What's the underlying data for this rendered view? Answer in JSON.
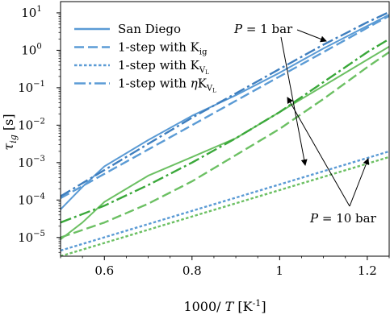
{
  "chart_data": {
    "type": "line",
    "xlabel": "1000/ T [K⁻¹]",
    "ylabel": "τ_ig [s]",
    "xlim": [
      0.5,
      1.25
    ],
    "ylim_log10": [
      -5.5,
      1.3
    ],
    "yscale": "log",
    "grid": false,
    "legend_position": "top-left",
    "x_ticks": [
      {
        "value": 0.6,
        "label": "0.6"
      },
      {
        "value": 0.8,
        "label": "0.8"
      },
      {
        "value": 1.0,
        "label": "1"
      },
      {
        "value": 1.2,
        "label": "1.2"
      }
    ],
    "y_ticks": [
      {
        "exp": 1,
        "label": "1"
      },
      {
        "exp": 0,
        "label": "0"
      },
      {
        "exp": -1,
        "label": "−1"
      },
      {
        "exp": -2,
        "label": "−2"
      },
      {
        "exp": -3,
        "label": "−3"
      },
      {
        "exp": -4,
        "label": "−4"
      },
      {
        "exp": -5,
        "label": "−5"
      }
    ],
    "legend": [
      {
        "label": "San Diego",
        "sub": "",
        "prefix": "",
        "style": "solid"
      },
      {
        "label": "1-step with K",
        "sub": "ig",
        "prefix": "",
        "style": "dashed"
      },
      {
        "label": "1-step with K",
        "sub": "V",
        "subsub": "L",
        "prefix": "",
        "style": "dotted"
      },
      {
        "label": "1-step with ",
        "prefix_symbol": "η",
        "label2": "K",
        "sub": "V",
        "subsub": "L",
        "style": "dashdot"
      }
    ],
    "annotations": [
      {
        "text_prefix": "P",
        "text_suffix": " = 1 bar",
        "target": "blue"
      },
      {
        "text_prefix": "P",
        "text_suffix": " = 10 bar",
        "target": "green"
      }
    ],
    "colors": {
      "blue": "#5b9bd5",
      "blue_dark": "#3f7fbf",
      "green": "#6cc063",
      "green_dark": "#3aa83a"
    },
    "series": [
      {
        "group": "P=1 bar",
        "style": "solid",
        "color": "blue",
        "x": [
          0.5,
          0.55,
          0.6,
          0.7,
          0.8,
          0.9,
          1.0,
          1.1,
          1.2,
          1.25
        ],
        "log10y": [
          -4.25,
          -3.65,
          -3.1,
          -2.4,
          -1.75,
          -1.2,
          -0.6,
          0.05,
          0.65,
          0.95
        ]
      },
      {
        "group": "P=1 bar",
        "style": "dashed",
        "color": "blue",
        "x": [
          0.5,
          0.6,
          0.7,
          0.8,
          0.9,
          1.0,
          1.1,
          1.2,
          1.25
        ],
        "log10y": [
          -3.95,
          -3.3,
          -2.65,
          -2.0,
          -1.35,
          -0.7,
          -0.05,
          0.6,
          0.92
        ]
      },
      {
        "group": "P=1 bar",
        "style": "dotted",
        "color": "blue",
        "x": [
          0.5,
          1.25
        ],
        "log10y": [
          -5.35,
          -2.7
        ]
      },
      {
        "group": "P=1 bar",
        "style": "dashdot",
        "color": "blue_dark",
        "x": [
          0.5,
          0.6,
          0.7,
          0.8,
          0.9,
          1.0,
          1.1,
          1.2,
          1.25
        ],
        "log10y": [
          -3.9,
          -3.2,
          -2.5,
          -1.8,
          -1.15,
          -0.5,
          0.15,
          0.75,
          1.02
        ]
      },
      {
        "group": "P=10 bar",
        "style": "solid",
        "color": "green",
        "x": [
          0.5,
          0.55,
          0.6,
          0.7,
          0.8,
          0.9,
          1.0,
          1.1,
          1.2,
          1.25
        ],
        "log10y": [
          -5.05,
          -4.6,
          -4.05,
          -3.35,
          -2.85,
          -2.35,
          -1.65,
          -0.95,
          -0.25,
          0.1
        ]
      },
      {
        "group": "P=10 bar",
        "style": "dashed",
        "color": "green",
        "x": [
          0.5,
          0.6,
          0.7,
          0.8,
          0.9,
          1.0,
          1.1,
          1.2,
          1.25
        ],
        "log10y": [
          -5.0,
          -4.6,
          -4.1,
          -3.5,
          -2.8,
          -2.1,
          -1.3,
          -0.45,
          -0.05
        ]
      },
      {
        "group": "P=10 bar",
        "style": "dotted",
        "color": "green",
        "x": [
          0.5,
          1.25
        ],
        "log10y": [
          -5.5,
          -2.85
        ]
      },
      {
        "group": "P=10 bar",
        "style": "dashdot",
        "color": "green_dark",
        "x": [
          0.5,
          0.6,
          0.7,
          0.8,
          0.9,
          1.0,
          1.1,
          1.2,
          1.25
        ],
        "log10y": [
          -4.6,
          -4.15,
          -3.6,
          -3.0,
          -2.35,
          -1.65,
          -0.85,
          -0.05,
          0.3
        ]
      }
    ]
  }
}
